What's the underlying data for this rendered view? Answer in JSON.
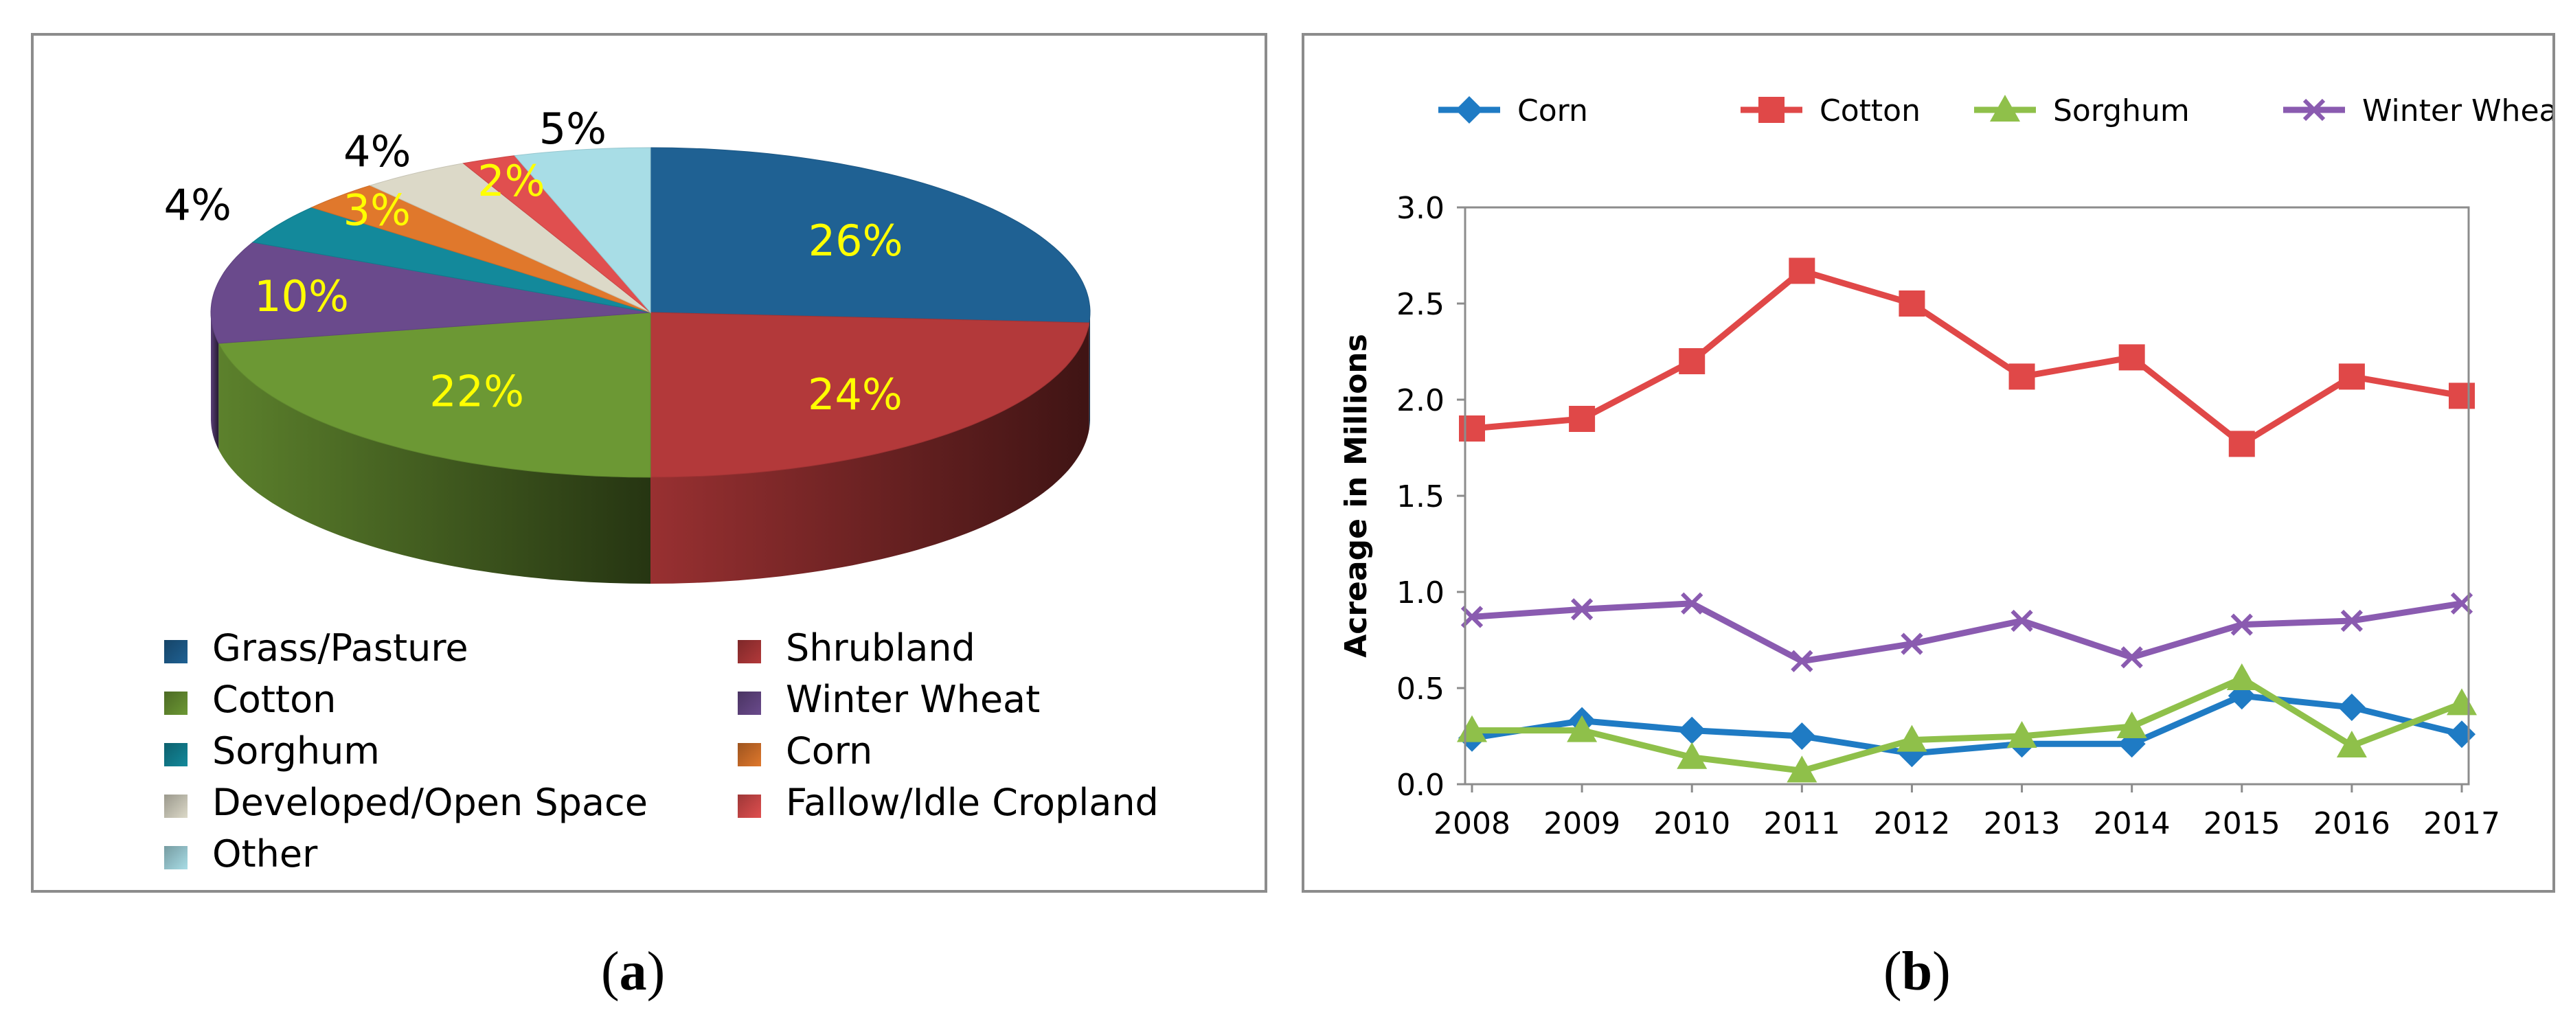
{
  "chart_data": [
    {
      "type": "pie",
      "panel": "a",
      "title": "",
      "slices": [
        {
          "label": "Grass/Pasture",
          "value": 26,
          "text": "26%",
          "color": "#1f6193"
        },
        {
          "label": "Shrubland",
          "value": 24,
          "text": "24%",
          "color": "#b3393a"
        },
        {
          "label": "Cotton",
          "value": 22,
          "text": "22%",
          "color": "#6c9834"
        },
        {
          "label": "Winter Wheat",
          "value": 10,
          "text": "10%",
          "color": "#6a4a8c"
        },
        {
          "label": "Sorghum",
          "value": 4,
          "text": "4%",
          "color": "#13899b"
        },
        {
          "label": "Corn",
          "value": 3,
          "text": "3%",
          "color": "#e0782c"
        },
        {
          "label": "Developed/Open Space",
          "value": 4,
          "text": "4%",
          "color": "#dcd9c8"
        },
        {
          "label": "Fallow/Idle Cropland",
          "value": 2,
          "text": "2%",
          "color": "#e04f4f"
        },
        {
          "label": "Other",
          "value": 5,
          "text": "5%",
          "color": "#a8dde6"
        }
      ],
      "legend": [
        "Grass/Pasture",
        "Shrubland",
        "Cotton",
        "Winter Wheat",
        "Sorghum",
        "Corn",
        "Developed/Open Space",
        "Fallow/Idle Cropland",
        "Other"
      ],
      "legend_position": "bottom"
    },
    {
      "type": "line",
      "panel": "b",
      "title": "",
      "xlabel": "",
      "ylabel": "Acreage in Millions",
      "x": [
        2008,
        2009,
        2010,
        2011,
        2012,
        2013,
        2014,
        2015,
        2016,
        2017
      ],
      "x_tick_labels": [
        "2008",
        "2009",
        "2010",
        "2011",
        "2012",
        "2013",
        "2014",
        "2015",
        "2016",
        "2017"
      ],
      "ylim": [
        0,
        3.0
      ],
      "y_ticks": [
        0,
        0.5,
        1.0,
        1.5,
        2.0,
        2.5,
        3.0
      ],
      "y_tick_labels": [
        "0.0",
        "0.5",
        "1.0",
        "1.5",
        "2.0",
        "2.5",
        "3.0"
      ],
      "grid": false,
      "legend_position": "top",
      "series": [
        {
          "name": "Corn",
          "marker": "diamond",
          "color": "#1f7bc4",
          "values": [
            0.24,
            0.33,
            0.28,
            0.25,
            0.16,
            0.21,
            0.21,
            0.46,
            0.4,
            0.26
          ]
        },
        {
          "name": "Cotton",
          "marker": "square",
          "color": "#e04848",
          "values": [
            1.85,
            1.9,
            2.2,
            2.67,
            2.5,
            2.12,
            2.22,
            1.77,
            2.12,
            2.02
          ]
        },
        {
          "name": "Sorghum",
          "marker": "triangle",
          "color": "#8fc04a",
          "values": [
            0.28,
            0.28,
            0.14,
            0.07,
            0.23,
            0.25,
            0.3,
            0.55,
            0.2,
            0.42
          ]
        },
        {
          "name": "Winter Wheat",
          "marker": "x",
          "color": "#8a5bb0",
          "values": [
            0.87,
            0.91,
            0.94,
            0.64,
            0.73,
            0.85,
            0.66,
            0.83,
            0.85,
            0.94
          ]
        }
      ]
    }
  ],
  "captions": {
    "a_letter": "a",
    "b_letter": "b"
  }
}
